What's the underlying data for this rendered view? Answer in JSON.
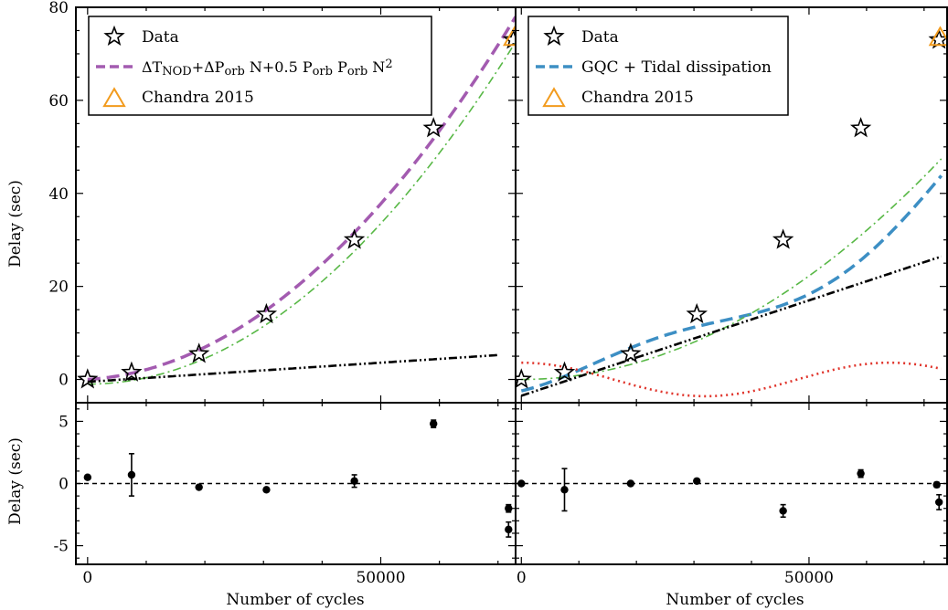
{
  "chart_data": [
    {
      "type": "scatter",
      "panel": "top-left",
      "ylabel": "Delay (sec)",
      "ylim": [
        -5,
        80
      ],
      "xlim": [
        -2000,
        73000
      ],
      "yticks": [
        0,
        20,
        40,
        60,
        80
      ],
      "legend": {
        "placement": "top-left",
        "entries": [
          {
            "label": "Data",
            "marker": "star"
          },
          {
            "label_main": "ΔT",
            "label_sub1": "NOD",
            "label_mid": "+ΔP",
            "label_sub2": "orb",
            "label_mid2": " N+0.5 P",
            "label_sub3": "orb",
            "label_mid3": " P",
            "label_sub4": "orb",
            "label_end": " N",
            "label_sup": "2",
            "marker": "dashed-line",
            "color": "#a35bb0"
          },
          {
            "label": "Chandra 2015",
            "marker": "triangle",
            "color": "#f29b1d"
          }
        ]
      },
      "series": [
        {
          "name": "Data",
          "kind": "star",
          "x": [
            0,
            7500,
            19000,
            30500,
            45500,
            59000,
            72600
          ],
          "y": [
            0,
            1.5,
            5.5,
            14,
            30,
            54,
            73
          ]
        },
        {
          "name": "Chandra 2015",
          "kind": "triangle",
          "x": [
            72800
          ],
          "y": [
            73.5
          ]
        },
        {
          "kind": "dashed",
          "color": "#a35bb0",
          "model": {
            "a": 0,
            "b": 7.5e-05,
            "c": 1.36e-08
          },
          "xrange": [
            0,
            73000
          ]
        },
        {
          "kind": "dashdot",
          "color": "#58b846",
          "model": {
            "a": -1,
            "b": 0,
            "c": 1.38e-08
          },
          "xrange": [
            0,
            73000
          ]
        },
        {
          "kind": "dashdotdot",
          "color": "#000000",
          "model": {
            "a": -0.5,
            "b": 8.2e-05,
            "c": 0
          },
          "xrange": [
            0,
            70000
          ]
        }
      ]
    },
    {
      "type": "scatter",
      "panel": "top-right",
      "ylim": [
        -5,
        80
      ],
      "xlim": [
        -1000,
        74000
      ],
      "legend": {
        "placement": "top-left",
        "entries": [
          {
            "label": "Data",
            "marker": "star"
          },
          {
            "label": "GQC + Tidal dissipation",
            "marker": "dashed-line",
            "color": "#3d8fc4"
          },
          {
            "label": "Chandra 2015",
            "marker": "triangle",
            "color": "#f29b1d"
          }
        ]
      },
      "series": [
        {
          "name": "Data",
          "kind": "star",
          "x": [
            0,
            7500,
            19000,
            30500,
            45500,
            59000,
            72600
          ],
          "y": [
            0,
            1.5,
            5.5,
            14,
            30,
            54,
            73
          ]
        },
        {
          "name": "Chandra 2015",
          "kind": "triangle",
          "x": [
            72800
          ],
          "y": [
            73.5
          ]
        },
        {
          "kind": "dashed",
          "color": "#3d8fc4",
          "model": {
            "a": 0,
            "b": 5.5e-05,
            "c": 7.4e-09,
            "amp": 3.5,
            "period": 64000,
            "phase": 8000
          },
          "xrange": [
            0,
            73000
          ]
        },
        {
          "kind": "dashdot",
          "color": "#58b846",
          "model": {
            "a": 0,
            "b": 0,
            "c": 8.9e-09
          },
          "xrange": [
            0,
            73000
          ]
        },
        {
          "kind": "dashdotdot",
          "color": "#000000",
          "model": {
            "a": -3.5,
            "b": 0.00041,
            "c": 0
          },
          "xrange": [
            0,
            73000
          ]
        },
        {
          "kind": "dotted",
          "color": "#e0342b",
          "model": {
            "amp": 3.6,
            "period": 64000,
            "phase": -16000
          },
          "xrange": [
            0,
            73000
          ]
        }
      ]
    },
    {
      "type": "scatter",
      "panel": "bottom-left",
      "ylabel": "Delay (sec)",
      "xlabel": "Number of cycles",
      "ylim": [
        -6.5,
        6.5
      ],
      "xlim": [
        -2000,
        73000
      ],
      "yticks": [
        -5,
        0,
        5
      ],
      "xticks": [
        0,
        50000
      ],
      "zero_line": true,
      "series": [
        {
          "name": "residuals",
          "x": [
            0,
            7500,
            19000,
            30500,
            45500,
            59000,
            71800,
            71800
          ],
          "y": [
            0.5,
            0.7,
            -0.3,
            -0.5,
            0.2,
            4.8,
            -2.0,
            -3.7
          ],
          "err": [
            0,
            1.7,
            0,
            0,
            0.5,
            0.3,
            0.3,
            0.6
          ]
        }
      ]
    },
    {
      "type": "scatter",
      "panel": "bottom-right",
      "xlabel": "Number of cycles",
      "ylim": [
        -6.5,
        6.5
      ],
      "xlim": [
        -1000,
        74000
      ],
      "xticks": [
        0,
        50000
      ],
      "zero_line": true,
      "series": [
        {
          "name": "residuals",
          "x": [
            0,
            7500,
            19000,
            30500,
            45500,
            59000,
            72200,
            72600
          ],
          "y": [
            0.0,
            -0.5,
            0.0,
            0.2,
            -2.2,
            0.8,
            -0.1,
            -1.5
          ],
          "err": [
            0,
            1.7,
            0,
            0,
            0.5,
            0.3,
            0.2,
            0.6
          ]
        }
      ]
    }
  ],
  "text": {
    "ylabel_top": "Delay (sec)",
    "ylabel_bottom": "Delay (sec)",
    "xlabel_left": "Number of cycles",
    "xlabel_right": "Number of cycles"
  }
}
